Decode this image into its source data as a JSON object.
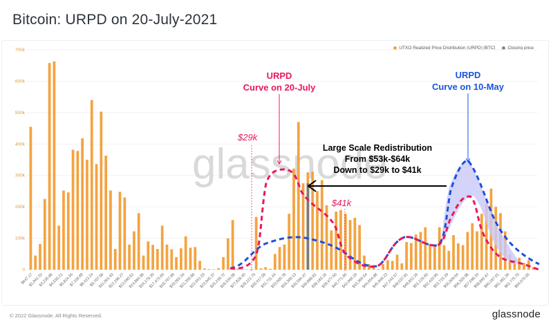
{
  "header": {
    "title": "Bitcoin: URPD on 20-July-2021"
  },
  "legend": [
    {
      "label": "UTXO Realized Price Distribution (URPD) [BTC]",
      "color": "#f4a340"
    },
    {
      "label": "Closing price",
      "color": "#888888"
    }
  ],
  "watermark": "glassnode",
  "footer": {
    "copyright": "© 2022 Glassnode. All Rights Reserved.",
    "brand": "glassnode"
  },
  "annotations": {
    "red_label_1": "URPD",
    "red_label_2": "Curve on 20-July",
    "blue_label_1": "URPD",
    "blue_label_2": "Curve on 10-May",
    "center_1": "Large Scale Redistribution",
    "center_2": "From $53k-$64k",
    "center_3": "Down to $29k to $41k",
    "price_low": "$29k",
    "price_high": "$41k"
  },
  "chart_data": {
    "type": "bar",
    "title": "Bitcoin: URPD on 20-July-2021",
    "xlabel": "",
    "ylabel": "",
    "ylim": [
      0,
      700000
    ],
    "yticks": [
      "0",
      "100k",
      "200k",
      "300k",
      "400k",
      "500k",
      "600k",
      "700k"
    ],
    "grid": true,
    "legend_position": "top-right",
    "x_tick_labels": [
      "$647.17",
      "$1,941.52",
      "$3,235.86",
      "$4,530.21",
      "$5,824.55",
      "$7,118.89",
      "$8,413.24",
      "$9,707.58",
      "$11,001.93",
      "$12,296.27",
      "$13,590.62",
      "$14,884.96",
      "$16,179.30",
      "$17,473.65",
      "$18,767.99",
      "$20,062.34",
      "$21,356.68",
      "$22,651.03",
      "$23,945.37",
      "$25,239.72",
      "$26,534.06",
      "$27,828.40",
      "$29,122.75",
      "$30,417.09",
      "$31,711.44",
      "$33,005.78",
      "$34,300.13",
      "$35,594.47",
      "$36,888.81",
      "$38,183.16",
      "$39,477.50",
      "$40,771.85",
      "$42,066.19",
      "$43,360.54",
      "$44,654.88",
      "$45,949.23",
      "$47,243.57",
      "$48,537.91",
      "$49,832.26",
      "$51,126.60",
      "$52,420.95",
      "$53,715.29",
      "$55,009.64",
      "$56,303.98",
      "$57,598.33",
      "$58,892.67",
      "$60,187.01",
      "$61,481.36",
      "$62,775.70",
      "$64,070.05"
    ],
    "series": [
      {
        "name": "UTXO Realized Price Distribution (URPD) [BTC]",
        "values_k": [
          455,
          45,
          82,
          225,
          658,
          663,
          140,
          252,
          246,
          382,
          378,
          418,
          350,
          540,
          336,
          503,
          363,
          252,
          66,
          248,
          230,
          80,
          122,
          180,
          45,
          90,
          79,
          66,
          140,
          80,
          65,
          40,
          68,
          106,
          70,
          72,
          28,
          4,
          2,
          1,
          5,
          40,
          100,
          158,
          3,
          2,
          1,
          2,
          168,
          4,
          8,
          3,
          50,
          72,
          80,
          178,
          322,
          470,
          275,
          310,
          312,
          250,
          285,
          205,
          125,
          185,
          190,
          178,
          158,
          165,
          142,
          45,
          18,
          8,
          2,
          18,
          30,
          28,
          48,
          20,
          88,
          85,
          112,
          120,
          135,
          80,
          80,
          135,
          78,
          60,
          110,
          84,
          78,
          120,
          148,
          122,
          178,
          210,
          258,
          200,
          180,
          122,
          48,
          30,
          38,
          22,
          30,
          8
        ],
        "closing_price_index": 58,
        "closing_price_value_k": 275
      }
    ]
  }
}
